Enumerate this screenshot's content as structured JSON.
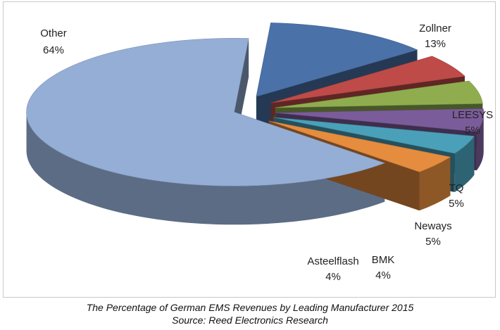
{
  "chart_data": {
    "type": "pie",
    "style": "3d-exploded",
    "slices": [
      {
        "label": "Zollner",
        "value": 13,
        "value_label": "13%",
        "color": "#4a72a8"
      },
      {
        "label": "LEESYS",
        "value": 5,
        "value_label": "5%",
        "color": "#be4b48"
      },
      {
        "label": "TQ",
        "value": 5,
        "value_label": "5%",
        "color": "#8fad4f"
      },
      {
        "label": "Neways",
        "value": 5,
        "value_label": "5%",
        "color": "#7b5c9a"
      },
      {
        "label": "BMK",
        "value": 4,
        "value_label": "4%",
        "color": "#4aa0b9"
      },
      {
        "label": "Asteelflash",
        "value": 4,
        "value_label": "4%",
        "color": "#e58c3e"
      },
      {
        "label": "Other",
        "value": 64,
        "value_label": "64%",
        "color": "#95aed6"
      }
    ]
  },
  "caption": {
    "line1": "The Percentage of German EMS Revenues by Leading Manufacturer 2015",
    "line2": "Source: Reed Electronics Research"
  }
}
